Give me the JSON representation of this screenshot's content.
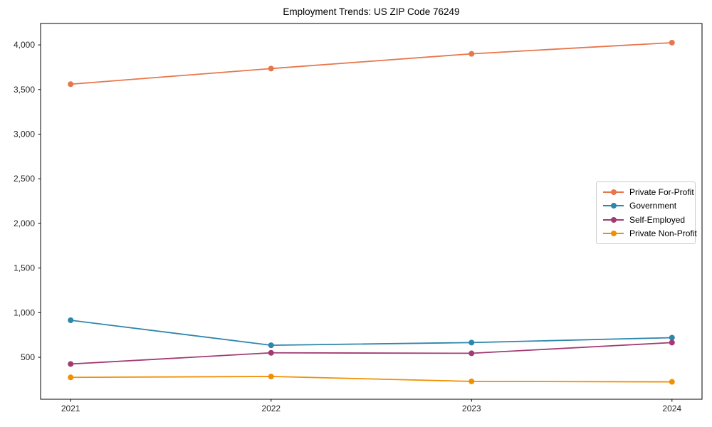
{
  "chart_data": {
    "type": "line",
    "title": "Employment Trends: US ZIP Code 76249",
    "xlabel": "",
    "ylabel": "",
    "grid": false,
    "legend_position": "center-right",
    "marker": "circle",
    "categories": [
      "2021",
      "2022",
      "2023",
      "2024"
    ],
    "series": [
      {
        "name": "Private For-Profit",
        "color": "#E8764B",
        "values": [
          3560,
          3735,
          3900,
          4025
        ]
      },
      {
        "name": "Government",
        "color": "#2E86AB",
        "values": [
          915,
          635,
          665,
          720
        ]
      },
      {
        "name": "Self-Employed",
        "color": "#A23B72",
        "values": [
          425,
          550,
          545,
          665
        ]
      },
      {
        "name": "Private Non-Profit",
        "color": "#F18F01",
        "values": [
          275,
          285,
          230,
          225
        ]
      }
    ],
    "y_tick_values": [
      500,
      1000,
      1500,
      2000,
      2500,
      3000,
      3500,
      4000
    ],
    "y_tick_labels": [
      "500",
      "1,000",
      "1,500",
      "2,000",
      "2,500",
      "3,000",
      "3,500",
      "4,000"
    ],
    "ylim": [
      30,
      4240
    ],
    "axis_color": "#000000",
    "tick_label_color": "#262626"
  }
}
